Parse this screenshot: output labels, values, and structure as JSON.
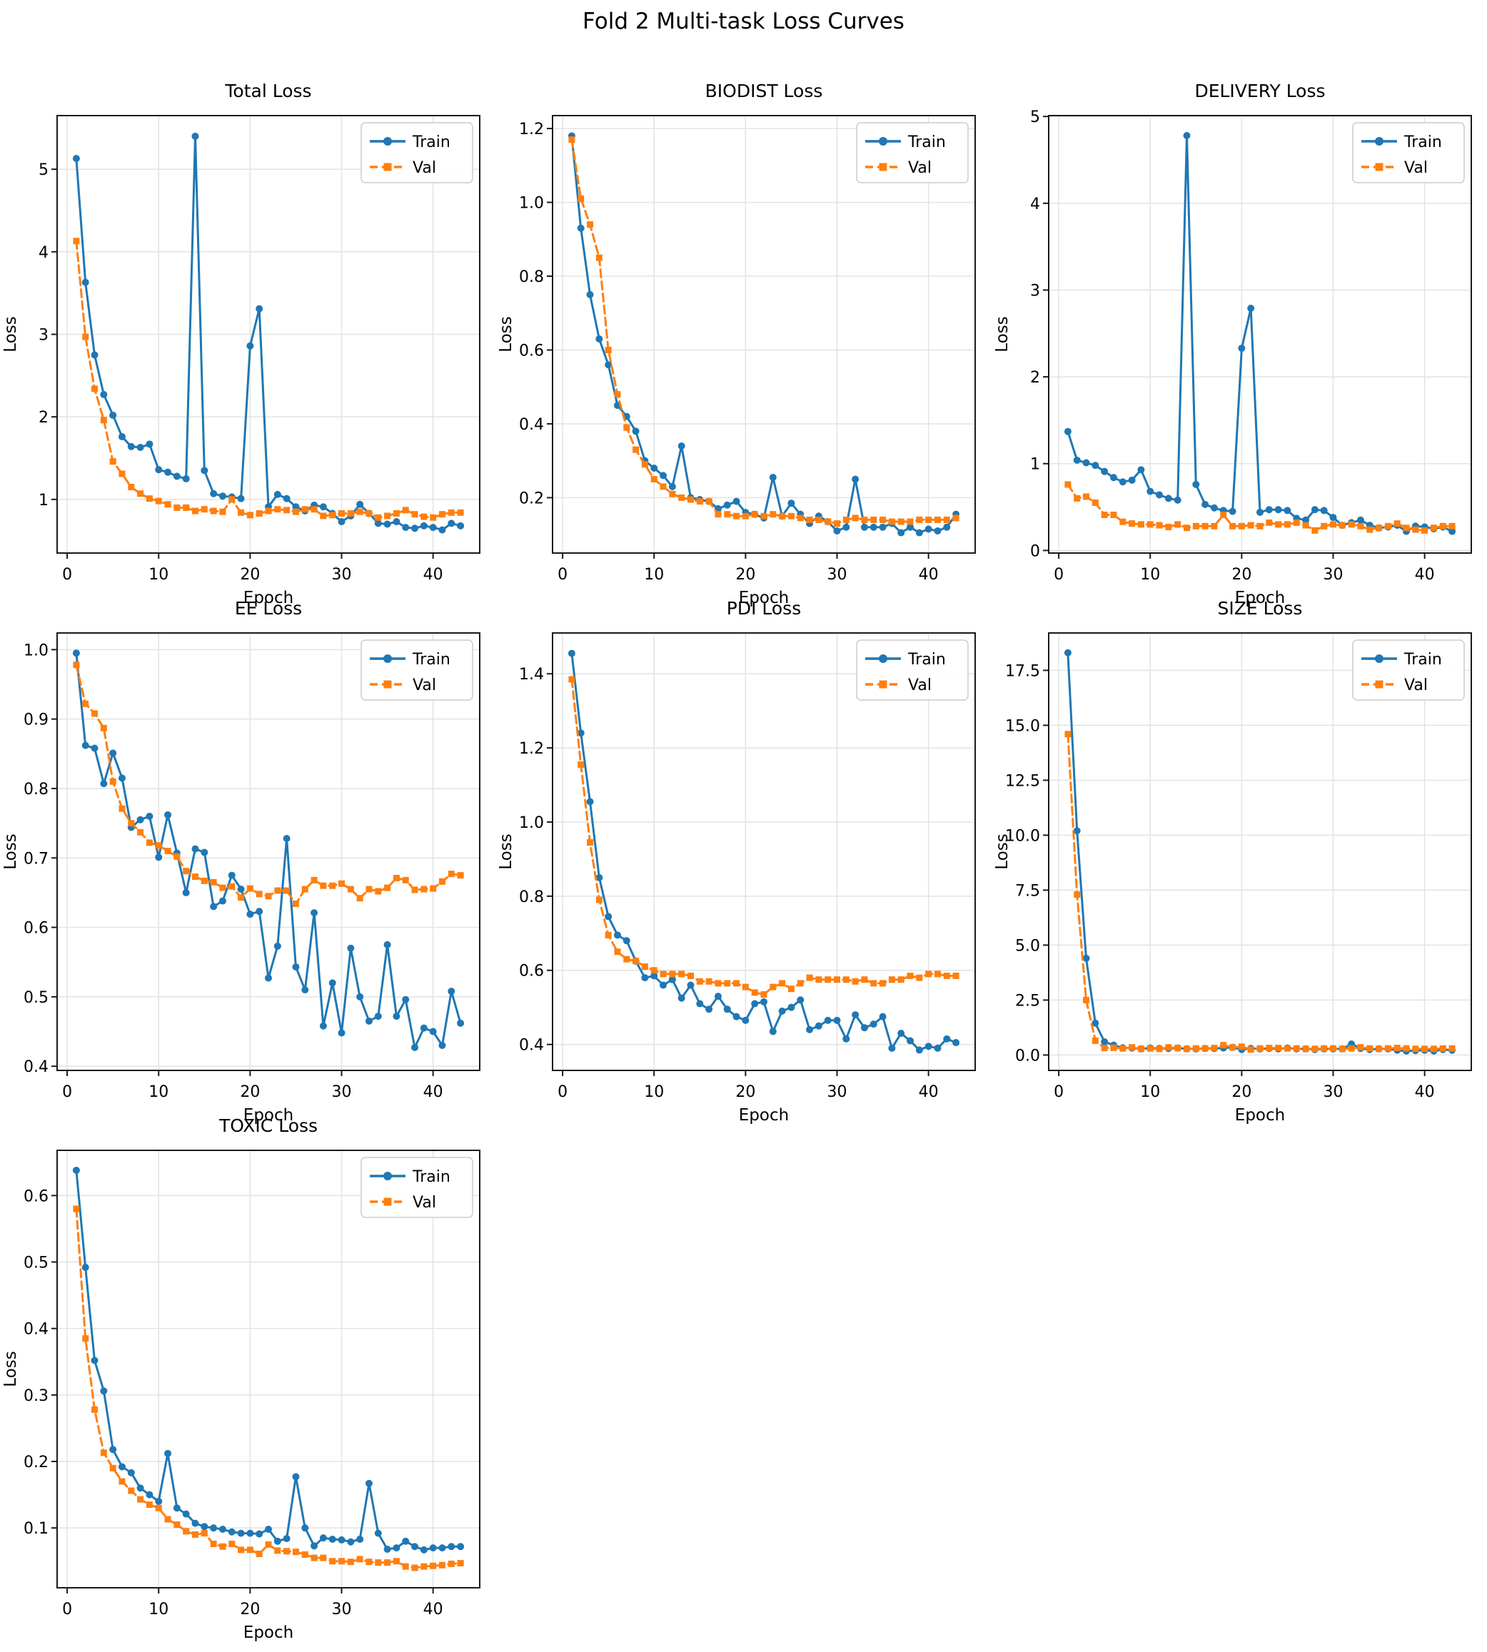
{
  "figure": {
    "title": "Fold 2 Multi-task Loss Curves"
  },
  "colors": {
    "train": "#1f77b4",
    "val": "#ff7f0e",
    "grid": "#e3e3e3",
    "spine": "#1a1a1a",
    "legend_border": "#cccccc"
  },
  "epochs": [
    1,
    2,
    3,
    4,
    5,
    6,
    7,
    8,
    9,
    10,
    11,
    12,
    13,
    14,
    15,
    16,
    17,
    18,
    19,
    20,
    21,
    22,
    23,
    24,
    25,
    26,
    27,
    28,
    29,
    30,
    31,
    32,
    33,
    34,
    35,
    36,
    37,
    38,
    39,
    40,
    41,
    42,
    43
  ],
  "chart_data": [
    {
      "type": "line",
      "title": "Total Loss",
      "xlabel": "Epoch",
      "ylabel": "Loss",
      "legend": [
        "Train",
        "Val"
      ],
      "legend_position": "top-right",
      "grid": true,
      "xlim": [
        -1.1,
        45.1
      ],
      "xticks": [
        0,
        10,
        20,
        30,
        40
      ],
      "xtick_decimals": 0,
      "ylim": [
        0.35,
        5.65
      ],
      "yticks": [
        1,
        2,
        3,
        4,
        5
      ],
      "ytick_decimals": 0,
      "series": [
        {
          "name": "Train",
          "style": "solid",
          "marker": "circle",
          "values": [
            5.13,
            3.63,
            2.75,
            2.27,
            2.02,
            1.76,
            1.64,
            1.63,
            1.67,
            1.36,
            1.33,
            1.28,
            1.25,
            5.4,
            1.35,
            1.07,
            1.04,
            1.03,
            1.01,
            2.86,
            3.31,
            0.91,
            1.06,
            1.01,
            0.91,
            0.86,
            0.93,
            0.91,
            0.83,
            0.73,
            0.8,
            0.94,
            0.83,
            0.71,
            0.7,
            0.73,
            0.66,
            0.65,
            0.68,
            0.66,
            0.63,
            0.71,
            0.68
          ]
        },
        {
          "name": "Val",
          "style": "dashed",
          "marker": "square",
          "values": [
            4.13,
            2.97,
            2.34,
            1.96,
            1.46,
            1.31,
            1.15,
            1.07,
            1.01,
            0.98,
            0.94,
            0.9,
            0.9,
            0.86,
            0.88,
            0.86,
            0.85,
            1.0,
            0.84,
            0.81,
            0.83,
            0.86,
            0.88,
            0.87,
            0.85,
            0.88,
            0.88,
            0.8,
            0.81,
            0.83,
            0.83,
            0.85,
            0.83,
            0.78,
            0.8,
            0.83,
            0.87,
            0.82,
            0.79,
            0.78,
            0.82,
            0.84,
            0.84
          ]
        }
      ]
    },
    {
      "type": "line",
      "title": "BIODIST Loss",
      "xlabel": "Epoch",
      "ylabel": "Loss",
      "legend": [
        "Train",
        "Val"
      ],
      "legend_position": "top-right",
      "grid": true,
      "xlim": [
        -1.1,
        45.1
      ],
      "xticks": [
        0,
        10,
        20,
        30,
        40
      ],
      "xtick_decimals": 0,
      "ylim": [
        0.05,
        1.235
      ],
      "yticks": [
        0.2,
        0.4,
        0.6,
        0.8,
        1.0,
        1.2
      ],
      "ytick_decimals": 1,
      "series": [
        {
          "name": "Train",
          "style": "solid",
          "marker": "circle",
          "values": [
            1.18,
            0.93,
            0.75,
            0.63,
            0.56,
            0.45,
            0.42,
            0.38,
            0.3,
            0.28,
            0.26,
            0.23,
            0.34,
            0.2,
            0.195,
            0.19,
            0.17,
            0.18,
            0.19,
            0.16,
            0.155,
            0.145,
            0.255,
            0.15,
            0.185,
            0.155,
            0.13,
            0.15,
            0.135,
            0.11,
            0.12,
            0.25,
            0.12,
            0.12,
            0.12,
            0.13,
            0.105,
            0.12,
            0.105,
            0.115,
            0.11,
            0.12,
            0.155
          ]
        },
        {
          "name": "Val",
          "style": "dashed",
          "marker": "square",
          "values": [
            1.17,
            1.01,
            0.94,
            0.85,
            0.6,
            0.48,
            0.39,
            0.33,
            0.29,
            0.25,
            0.23,
            0.21,
            0.2,
            0.195,
            0.19,
            0.19,
            0.155,
            0.155,
            0.15,
            0.15,
            0.155,
            0.15,
            0.155,
            0.15,
            0.15,
            0.145,
            0.14,
            0.14,
            0.135,
            0.13,
            0.14,
            0.145,
            0.14,
            0.14,
            0.14,
            0.135,
            0.135,
            0.135,
            0.14,
            0.14,
            0.14,
            0.14,
            0.145
          ]
        }
      ]
    },
    {
      "type": "line",
      "title": "DELIVERY Loss",
      "xlabel": "Epoch",
      "ylabel": "Loss",
      "legend": [
        "Train",
        "Val"
      ],
      "legend_position": "top-right",
      "grid": true,
      "xlim": [
        -1.1,
        45.1
      ],
      "xticks": [
        0,
        10,
        20,
        30,
        40
      ],
      "xtick_decimals": 0,
      "ylim": [
        -0.03,
        5.01
      ],
      "yticks": [
        0,
        1,
        2,
        3,
        4,
        5
      ],
      "ytick_decimals": 0,
      "series": [
        {
          "name": "Train",
          "style": "solid",
          "marker": "circle",
          "values": [
            1.37,
            1.04,
            1.01,
            0.98,
            0.91,
            0.84,
            0.79,
            0.81,
            0.93,
            0.68,
            0.64,
            0.6,
            0.58,
            4.78,
            0.76,
            0.53,
            0.49,
            0.46,
            0.45,
            2.33,
            2.79,
            0.44,
            0.47,
            0.47,
            0.46,
            0.37,
            0.35,
            0.47,
            0.46,
            0.38,
            0.29,
            0.32,
            0.35,
            0.29,
            0.26,
            0.27,
            0.29,
            0.22,
            0.28,
            0.27,
            0.25,
            0.27,
            0.22
          ]
        },
        {
          "name": "Val",
          "style": "dashed",
          "marker": "square",
          "values": [
            0.76,
            0.6,
            0.62,
            0.55,
            0.41,
            0.41,
            0.33,
            0.31,
            0.3,
            0.3,
            0.29,
            0.27,
            0.3,
            0.26,
            0.28,
            0.28,
            0.28,
            0.41,
            0.28,
            0.28,
            0.29,
            0.28,
            0.32,
            0.3,
            0.3,
            0.32,
            0.29,
            0.23,
            0.28,
            0.3,
            0.29,
            0.3,
            0.28,
            0.24,
            0.26,
            0.28,
            0.31,
            0.26,
            0.24,
            0.23,
            0.26,
            0.28,
            0.28
          ]
        }
      ]
    },
    {
      "type": "line",
      "title": "EE Loss",
      "xlabel": "Epoch",
      "ylabel": "Loss",
      "legend": [
        "Train",
        "Val"
      ],
      "legend_position": "top-right",
      "grid": true,
      "xlim": [
        -1.1,
        45.1
      ],
      "xticks": [
        0,
        10,
        20,
        30,
        40
      ],
      "xtick_decimals": 0,
      "ylim": [
        0.394,
        1.024
      ],
      "yticks": [
        0.4,
        0.5,
        0.6,
        0.7,
        0.8,
        0.9,
        1.0
      ],
      "ytick_decimals": 1,
      "series": [
        {
          "name": "Train",
          "style": "solid",
          "marker": "circle",
          "values": [
            0.995,
            0.862,
            0.858,
            0.807,
            0.851,
            0.815,
            0.744,
            0.755,
            0.76,
            0.701,
            0.762,
            0.707,
            0.65,
            0.713,
            0.708,
            0.63,
            0.638,
            0.675,
            0.655,
            0.619,
            0.623,
            0.527,
            0.573,
            0.728,
            0.543,
            0.51,
            0.621,
            0.458,
            0.52,
            0.448,
            0.57,
            0.5,
            0.465,
            0.472,
            0.575,
            0.472,
            0.496,
            0.427,
            0.455,
            0.45,
            0.43,
            0.508,
            0.462
          ]
        },
        {
          "name": "Val",
          "style": "dashed",
          "marker": "square",
          "values": [
            0.978,
            0.922,
            0.908,
            0.887,
            0.81,
            0.771,
            0.75,
            0.737,
            0.722,
            0.718,
            0.71,
            0.702,
            0.681,
            0.673,
            0.667,
            0.665,
            0.657,
            0.659,
            0.643,
            0.656,
            0.648,
            0.645,
            0.653,
            0.653,
            0.634,
            0.655,
            0.668,
            0.66,
            0.66,
            0.663,
            0.655,
            0.642,
            0.655,
            0.652,
            0.657,
            0.671,
            0.668,
            0.654,
            0.655,
            0.656,
            0.666,
            0.677,
            0.675
          ]
        }
      ]
    },
    {
      "type": "line",
      "title": "PDI Loss",
      "xlabel": "Epoch",
      "ylabel": "Loss",
      "legend": [
        "Train",
        "Val"
      ],
      "legend_position": "top-right",
      "grid": true,
      "xlim": [
        -1.1,
        45.1
      ],
      "xticks": [
        0,
        10,
        20,
        30,
        40
      ],
      "xtick_decimals": 0,
      "ylim": [
        0.33,
        1.51
      ],
      "yticks": [
        0.4,
        0.6,
        0.8,
        1.0,
        1.2,
        1.4
      ],
      "ytick_decimals": 1,
      "series": [
        {
          "name": "Train",
          "style": "solid",
          "marker": "circle",
          "values": [
            1.455,
            1.24,
            1.055,
            0.85,
            0.745,
            0.695,
            0.68,
            0.625,
            0.58,
            0.585,
            0.56,
            0.575,
            0.525,
            0.56,
            0.51,
            0.495,
            0.53,
            0.495,
            0.475,
            0.465,
            0.51,
            0.515,
            0.435,
            0.49,
            0.5,
            0.52,
            0.44,
            0.45,
            0.465,
            0.465,
            0.415,
            0.48,
            0.445,
            0.455,
            0.475,
            0.39,
            0.43,
            0.41,
            0.385,
            0.395,
            0.39,
            0.415,
            0.405
          ]
        },
        {
          "name": "Val",
          "style": "dashed",
          "marker": "square",
          "values": [
            1.385,
            1.155,
            0.945,
            0.79,
            0.695,
            0.65,
            0.63,
            0.625,
            0.61,
            0.6,
            0.59,
            0.59,
            0.59,
            0.585,
            0.57,
            0.57,
            0.565,
            0.565,
            0.565,
            0.555,
            0.54,
            0.535,
            0.555,
            0.565,
            0.55,
            0.565,
            0.58,
            0.575,
            0.575,
            0.575,
            0.575,
            0.57,
            0.575,
            0.565,
            0.565,
            0.575,
            0.575,
            0.585,
            0.58,
            0.59,
            0.59,
            0.585,
            0.585
          ]
        }
      ]
    },
    {
      "type": "line",
      "title": "SIZE Loss",
      "xlabel": "Epoch",
      "ylabel": "Loss",
      "legend": [
        "Train",
        "Val"
      ],
      "legend_position": "top-right",
      "grid": true,
      "xlim": [
        -1.1,
        45.1
      ],
      "xticks": [
        0,
        10,
        20,
        30,
        40
      ],
      "xtick_decimals": 0,
      "ylim": [
        -0.7,
        19.2
      ],
      "yticks": [
        0.0,
        2.5,
        5.0,
        7.5,
        10.0,
        12.5,
        15.0,
        17.5
      ],
      "ytick_decimals": 1,
      "series": [
        {
          "name": "Train",
          "style": "solid",
          "marker": "circle",
          "values": [
            18.3,
            10.2,
            4.4,
            1.45,
            0.6,
            0.45,
            0.33,
            0.32,
            0.28,
            0.32,
            0.3,
            0.3,
            0.32,
            0.28,
            0.28,
            0.3,
            0.3,
            0.32,
            0.35,
            0.25,
            0.3,
            0.28,
            0.3,
            0.28,
            0.32,
            0.28,
            0.28,
            0.25,
            0.28,
            0.28,
            0.28,
            0.5,
            0.3,
            0.25,
            0.28,
            0.28,
            0.22,
            0.18,
            0.2,
            0.22,
            0.18,
            0.25,
            0.22
          ]
        },
        {
          "name": "Val",
          "style": "dashed",
          "marker": "square",
          "values": [
            14.6,
            7.3,
            2.5,
            0.65,
            0.32,
            0.33,
            0.3,
            0.35,
            0.28,
            0.3,
            0.28,
            0.35,
            0.32,
            0.28,
            0.3,
            0.3,
            0.32,
            0.45,
            0.35,
            0.38,
            0.25,
            0.3,
            0.32,
            0.32,
            0.3,
            0.3,
            0.28,
            0.28,
            0.3,
            0.3,
            0.28,
            0.3,
            0.35,
            0.3,
            0.28,
            0.3,
            0.32,
            0.3,
            0.28,
            0.28,
            0.28,
            0.3,
            0.3
          ]
        }
      ]
    },
    {
      "type": "line",
      "title": "TOXIC Loss",
      "xlabel": "Epoch",
      "ylabel": "Loss",
      "legend": [
        "Train",
        "Val"
      ],
      "legend_position": "top-right",
      "grid": true,
      "xlim": [
        -1.1,
        45.1
      ],
      "xticks": [
        0,
        10,
        20,
        30,
        40
      ],
      "xtick_decimals": 0,
      "ylim": [
        0.01,
        0.668
      ],
      "yticks": [
        0.1,
        0.2,
        0.3,
        0.4,
        0.5,
        0.6
      ],
      "ytick_decimals": 1,
      "series": [
        {
          "name": "Train",
          "style": "solid",
          "marker": "circle",
          "values": [
            0.638,
            0.492,
            0.352,
            0.306,
            0.218,
            0.192,
            0.183,
            0.16,
            0.15,
            0.14,
            0.212,
            0.13,
            0.121,
            0.107,
            0.102,
            0.1,
            0.098,
            0.094,
            0.092,
            0.092,
            0.091,
            0.098,
            0.08,
            0.084,
            0.177,
            0.1,
            0.073,
            0.085,
            0.083,
            0.082,
            0.079,
            0.083,
            0.167,
            0.092,
            0.068,
            0.07,
            0.08,
            0.072,
            0.067,
            0.07,
            0.07,
            0.072,
            0.072
          ]
        },
        {
          "name": "Val",
          "style": "dashed",
          "marker": "square",
          "values": [
            0.58,
            0.385,
            0.278,
            0.213,
            0.19,
            0.17,
            0.156,
            0.143,
            0.135,
            0.13,
            0.113,
            0.105,
            0.095,
            0.09,
            0.092,
            0.076,
            0.072,
            0.076,
            0.067,
            0.067,
            0.061,
            0.075,
            0.066,
            0.065,
            0.064,
            0.06,
            0.055,
            0.055,
            0.05,
            0.05,
            0.049,
            0.053,
            0.049,
            0.048,
            0.048,
            0.05,
            0.042,
            0.04,
            0.042,
            0.043,
            0.044,
            0.046,
            0.047
          ]
        }
      ]
    }
  ]
}
